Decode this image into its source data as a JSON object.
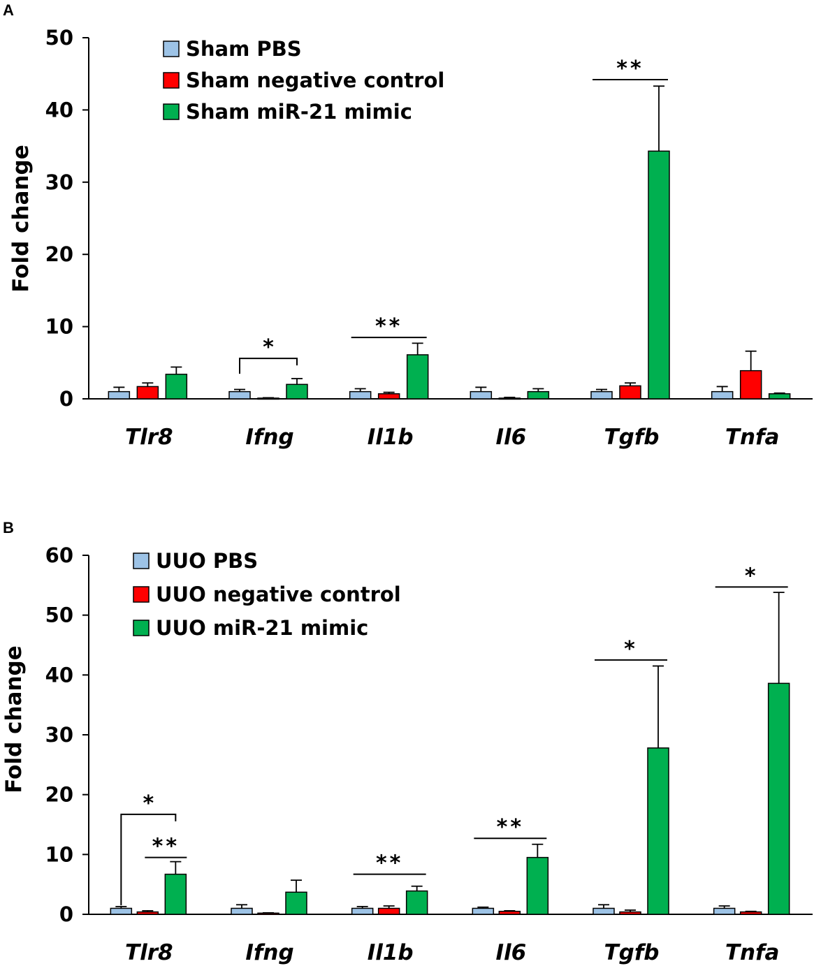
{
  "colors": {
    "series1": "#9dc3e6",
    "series2": "#ff0000",
    "series3": "#00b050",
    "axis": "#000000"
  },
  "chart_data": [
    {
      "panel": "A",
      "type": "bar",
      "ylabel": "Fold change",
      "ylim": [
        0,
        50
      ],
      "yticks": [
        0,
        10,
        20,
        30,
        40,
        50
      ],
      "categories": [
        "Tlr8",
        "Ifng",
        "Il1b",
        "Il6",
        "Tgfb",
        "Tnfa"
      ],
      "series": [
        {
          "name": "Sham PBS",
          "values": [
            1.0,
            1.0,
            1.0,
            1.0,
            1.0,
            1.0
          ],
          "errors": [
            0.6,
            0.3,
            0.4,
            0.6,
            0.3,
            0.7
          ]
        },
        {
          "name": "Sham negative control",
          "values": [
            1.7,
            0.1,
            0.7,
            0.1,
            1.8,
            3.9
          ],
          "errors": [
            0.5,
            0.05,
            0.2,
            0.1,
            0.4,
            2.7
          ]
        },
        {
          "name": "Sham miR-21 mimic",
          "values": [
            3.4,
            2.0,
            6.1,
            1.0,
            34.3,
            0.7
          ],
          "errors": [
            1.0,
            0.8,
            1.6,
            0.4,
            9.0,
            0.1
          ]
        }
      ],
      "significance": [
        {
          "label": "*",
          "category": "Ifng",
          "style": "bracket",
          "line_y": 5.6
        },
        {
          "label": "**",
          "category": "Il1b",
          "style": "line",
          "line_y": 8.5
        },
        {
          "label": "**",
          "category": "Tgfb",
          "style": "line",
          "line_y": 44.2
        }
      ]
    },
    {
      "panel": "B",
      "type": "bar",
      "ylabel": "Fold change",
      "ylim": [
        0,
        60
      ],
      "yticks": [
        0,
        10,
        20,
        30,
        40,
        50,
        60
      ],
      "categories": [
        "Tlr8",
        "Ifng",
        "Il1b",
        "Il6",
        "Tgfb",
        "Tnfa"
      ],
      "series": [
        {
          "name": "UUO PBS",
          "values": [
            1.0,
            1.0,
            1.0,
            1.0,
            1.0,
            1.0
          ],
          "errors": [
            0.3,
            0.6,
            0.3,
            0.2,
            0.6,
            0.4
          ]
        },
        {
          "name": "UUO negative control",
          "values": [
            0.4,
            0.2,
            1.0,
            0.5,
            0.4,
            0.4
          ],
          "errors": [
            0.2,
            0.05,
            0.4,
            0.1,
            0.3,
            0.1
          ]
        },
        {
          "name": "UUO miR-21 mimic",
          "values": [
            6.7,
            3.7,
            3.9,
            9.5,
            27.8,
            38.6
          ],
          "errors": [
            2.1,
            2.0,
            0.8,
            2.2,
            13.7,
            15.2
          ]
        }
      ],
      "significance": [
        {
          "label": "*",
          "category": "Tlr8",
          "style": "bracket",
          "line_y": 16.7
        },
        {
          "label": "**",
          "category": "Tlr8",
          "style": "line",
          "line_y": 9.5
        },
        {
          "label": "**",
          "category": "Il1b",
          "style": "line",
          "line_y": 6.7
        },
        {
          "label": "**",
          "category": "Il6",
          "style": "line",
          "line_y": 12.7
        },
        {
          "label": "*",
          "category": "Tgfb",
          "style": "line",
          "line_y": 42.5
        },
        {
          "label": "*",
          "category": "Tnfa",
          "style": "line",
          "line_y": 54.7
        }
      ]
    }
  ]
}
